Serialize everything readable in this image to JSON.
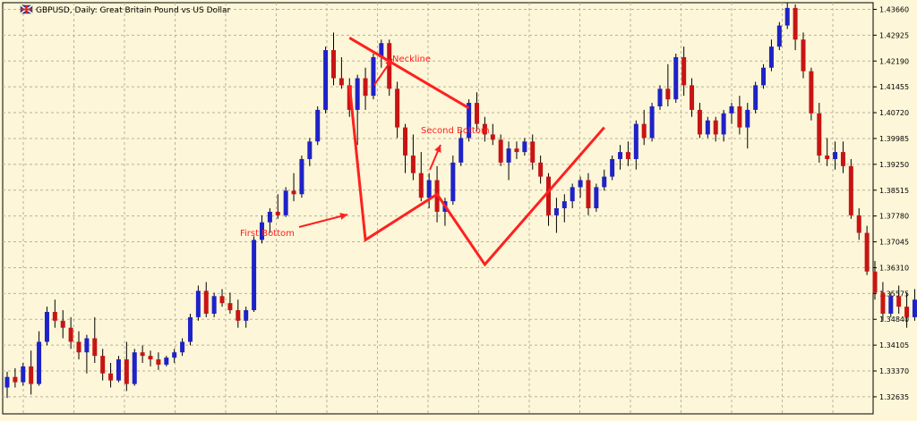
{
  "header": {
    "title": "GBPUSD, Daily:  Great Britain Pound vs US Dollar",
    "flag_icon": "uk-flag-icon"
  },
  "colors": {
    "background": "#fdf6d8",
    "grid": "#b9b39b",
    "axis": "#000000",
    "bull": "#1e22c8",
    "bear": "#c81414",
    "wick": "#000000",
    "annotation": "#ff2020"
  },
  "annotations": {
    "neckline": "Neckline",
    "second_bottom": "Second Bottom",
    "first_bottom": "First Bottom"
  },
  "chart_data": {
    "type": "candlestick",
    "title": "GBPUSD, Daily:  Great Britain Pound vs US Dollar",
    "yticks": [
      1.32635,
      1.3337,
      1.34105,
      1.3484,
      1.35575,
      1.3631,
      1.37045,
      1.3778,
      1.38515,
      1.3925,
      1.39985,
      1.4072,
      1.41455,
      1.4219,
      1.42925,
      1.4366
    ],
    "ytick_labels": [
      "1.32635",
      "1.33370",
      "1.34105",
      "1.34840",
      "1.35575",
      "1.36310",
      "1.37045",
      "1.37780",
      "1.38515",
      "1.39250",
      "1.39985",
      "1.40720",
      "1.41455",
      "1.42190",
      "1.42925",
      "1.43660"
    ],
    "ylim": [
      1.3215,
      1.4385
    ],
    "grid": true,
    "candles": [
      [
        1.329,
        1.3335,
        1.326,
        1.332
      ],
      [
        1.332,
        1.3345,
        1.329,
        1.3305
      ],
      [
        1.3305,
        1.336,
        1.3295,
        1.335
      ],
      [
        1.335,
        1.3395,
        1.327,
        1.33
      ],
      [
        1.33,
        1.345,
        1.3295,
        1.342
      ],
      [
        1.342,
        1.352,
        1.341,
        1.3505
      ],
      [
        1.3505,
        1.354,
        1.346,
        1.348
      ],
      [
        1.348,
        1.351,
        1.343,
        1.346
      ],
      [
        1.346,
        1.349,
        1.34,
        1.342
      ],
      [
        1.342,
        1.345,
        1.337,
        1.339
      ],
      [
        1.339,
        1.344,
        1.333,
        1.343
      ],
      [
        1.343,
        1.349,
        1.336,
        1.338
      ],
      [
        1.338,
        1.34,
        1.331,
        1.333
      ],
      [
        1.333,
        1.336,
        1.329,
        1.331
      ],
      [
        1.331,
        1.338,
        1.3305,
        1.337
      ],
      [
        1.337,
        1.342,
        1.328,
        1.33
      ],
      [
        1.33,
        1.34,
        1.3295,
        1.339
      ],
      [
        1.339,
        1.341,
        1.336,
        1.338
      ],
      [
        1.338,
        1.3395,
        1.335,
        1.337
      ],
      [
        1.337,
        1.339,
        1.334,
        1.3355
      ],
      [
        1.3355,
        1.338,
        1.335,
        1.3375
      ],
      [
        1.3375,
        1.34,
        1.336,
        1.339
      ],
      [
        1.339,
        1.343,
        1.338,
        1.342
      ],
      [
        1.342,
        1.35,
        1.341,
        1.349
      ],
      [
        1.349,
        1.358,
        1.348,
        1.3565
      ],
      [
        1.3565,
        1.359,
        1.349,
        1.35
      ],
      [
        1.35,
        1.356,
        1.349,
        1.355
      ],
      [
        1.355,
        1.357,
        1.352,
        1.353
      ],
      [
        1.353,
        1.356,
        1.35,
        1.351
      ],
      [
        1.351,
        1.354,
        1.346,
        1.348
      ],
      [
        1.348,
        1.352,
        1.346,
        1.351
      ],
      [
        1.351,
        1.372,
        1.3505,
        1.371
      ],
      [
        1.371,
        1.378,
        1.37,
        1.376
      ],
      [
        1.376,
        1.38,
        1.373,
        1.379
      ],
      [
        1.379,
        1.384,
        1.377,
        1.378
      ],
      [
        1.378,
        1.386,
        1.3775,
        1.385
      ],
      [
        1.385,
        1.39,
        1.382,
        1.384
      ],
      [
        1.384,
        1.395,
        1.383,
        1.394
      ],
      [
        1.394,
        1.4,
        1.392,
        1.399
      ],
      [
        1.399,
        1.409,
        1.398,
        1.408
      ],
      [
        1.408,
        1.426,
        1.407,
        1.425
      ],
      [
        1.425,
        1.43,
        1.415,
        1.417
      ],
      [
        1.417,
        1.423,
        1.414,
        1.415
      ],
      [
        1.415,
        1.417,
        1.406,
        1.408
      ],
      [
        1.408,
        1.418,
        1.398,
        1.417
      ],
      [
        1.417,
        1.42,
        1.408,
        1.412
      ],
      [
        1.412,
        1.424,
        1.411,
        1.423
      ],
      [
        1.423,
        1.428,
        1.42,
        1.427
      ],
      [
        1.427,
        1.428,
        1.412,
        1.414
      ],
      [
        1.414,
        1.416,
        1.4,
        1.403
      ],
      [
        1.403,
        1.404,
        1.39,
        1.395
      ],
      [
        1.395,
        1.401,
        1.388,
        1.39
      ],
      [
        1.39,
        1.396,
        1.382,
        1.383
      ],
      [
        1.383,
        1.39,
        1.38,
        1.388
      ],
      [
        1.388,
        1.392,
        1.376,
        1.379
      ],
      [
        1.379,
        1.383,
        1.375,
        1.382
      ],
      [
        1.382,
        1.395,
        1.381,
        1.393
      ],
      [
        1.393,
        1.402,
        1.392,
        1.4
      ],
      [
        1.4,
        1.411,
        1.399,
        1.41
      ],
      [
        1.41,
        1.413,
        1.402,
        1.404
      ],
      [
        1.404,
        1.406,
        1.399,
        1.401
      ],
      [
        1.401,
        1.404,
        1.398,
        1.3995
      ],
      [
        1.3995,
        1.401,
        1.392,
        1.393
      ],
      [
        1.393,
        1.399,
        1.388,
        1.397
      ],
      [
        1.397,
        1.399,
        1.394,
        1.396
      ],
      [
        1.396,
        1.4,
        1.395,
        1.399
      ],
      [
        1.399,
        1.401,
        1.391,
        1.393
      ],
      [
        1.393,
        1.395,
        1.387,
        1.389
      ],
      [
        1.389,
        1.39,
        1.375,
        1.378
      ],
      [
        1.378,
        1.383,
        1.373,
        1.38
      ],
      [
        1.38,
        1.384,
        1.376,
        1.382
      ],
      [
        1.382,
        1.387,
        1.38,
        1.386
      ],
      [
        1.386,
        1.389,
        1.383,
        1.388
      ],
      [
        1.388,
        1.39,
        1.378,
        1.38
      ],
      [
        1.38,
        1.387,
        1.379,
        1.386
      ],
      [
        1.386,
        1.391,
        1.385,
        1.389
      ],
      [
        1.389,
        1.395,
        1.388,
        1.394
      ],
      [
        1.394,
        1.398,
        1.391,
        1.396
      ],
      [
        1.396,
        1.399,
        1.392,
        1.394
      ],
      [
        1.394,
        1.405,
        1.391,
        1.404
      ],
      [
        1.404,
        1.408,
        1.398,
        1.4
      ],
      [
        1.4,
        1.41,
        1.399,
        1.409
      ],
      [
        1.409,
        1.415,
        1.408,
        1.414
      ],
      [
        1.414,
        1.421,
        1.409,
        1.411
      ],
      [
        1.411,
        1.424,
        1.41,
        1.423
      ],
      [
        1.423,
        1.426,
        1.412,
        1.415
      ],
      [
        1.415,
        1.417,
        1.406,
        1.408
      ],
      [
        1.408,
        1.41,
        1.4,
        1.401
      ],
      [
        1.401,
        1.406,
        1.4,
        1.405
      ],
      [
        1.405,
        1.406,
        1.399,
        1.401
      ],
      [
        1.401,
        1.408,
        1.399,
        1.407
      ],
      [
        1.407,
        1.41,
        1.404,
        1.409
      ],
      [
        1.409,
        1.412,
        1.401,
        1.403
      ],
      [
        1.403,
        1.41,
        1.397,
        1.408
      ],
      [
        1.408,
        1.416,
        1.407,
        1.415
      ],
      [
        1.415,
        1.421,
        1.414,
        1.42
      ],
      [
        1.42,
        1.428,
        1.419,
        1.426
      ],
      [
        1.426,
        1.433,
        1.425,
        1.432
      ],
      [
        1.432,
        1.4385,
        1.431,
        1.437
      ],
      [
        1.437,
        1.438,
        1.425,
        1.428
      ],
      [
        1.428,
        1.43,
        1.417,
        1.419
      ],
      [
        1.419,
        1.42,
        1.405,
        1.407
      ],
      [
        1.407,
        1.41,
        1.393,
        1.395
      ],
      [
        1.395,
        1.4,
        1.392,
        1.394
      ],
      [
        1.394,
        1.399,
        1.391,
        1.396
      ],
      [
        1.396,
        1.399,
        1.39,
        1.392
      ],
      [
        1.392,
        1.394,
        1.377,
        1.378
      ],
      [
        1.378,
        1.38,
        1.371,
        1.373
      ],
      [
        1.373,
        1.375,
        1.361,
        1.362
      ],
      [
        1.362,
        1.365,
        1.354,
        1.356
      ],
      [
        1.356,
        1.359,
        1.348,
        1.35
      ],
      [
        1.35,
        1.356,
        1.349,
        1.355
      ],
      [
        1.355,
        1.358,
        1.35,
        1.352
      ],
      [
        1.352,
        1.356,
        1.346,
        1.349
      ],
      [
        1.349,
        1.357,
        1.348,
        1.354
      ],
      [
        1.354,
        1.36,
        1.351,
        1.353
      ],
      [
        1.353,
        1.356,
        1.348,
        1.351
      ],
      [
        1.351,
        1.355,
        1.349,
        1.353
      ],
      [
        1.353,
        1.356,
        1.348,
        1.35
      ],
      [
        1.35,
        1.352,
        1.344,
        1.347
      ],
      [
        1.347,
        1.35,
        1.343,
        1.349
      ],
      [
        1.349,
        1.351,
        1.342,
        1.344
      ],
      [
        1.344,
        1.346,
        1.338,
        1.34
      ],
      [
        1.34,
        1.342,
        1.332,
        1.335
      ],
      [
        1.335,
        1.338,
        1.332,
        1.336
      ],
      [
        1.336,
        1.337,
        1.328,
        1.331
      ],
      [
        1.331,
        1.333,
        1.323,
        1.325
      ],
      [
        1.325,
        1.33,
        1.324,
        1.329
      ],
      [
        1.329,
        1.334,
        1.326,
        1.333
      ],
      [
        1.333,
        1.336,
        1.33,
        1.332
      ],
      [
        1.332,
        1.34,
        1.331,
        1.339
      ],
      [
        1.339,
        1.343,
        1.337,
        1.342
      ]
    ],
    "pattern_lines": [
      {
        "name": "neckline",
        "points": [
          [
            43,
            1.4285
          ],
          [
            58,
            1.4085
          ]
        ]
      },
      {
        "name": "w-shape",
        "points": [
          [
            43,
            1.415
          ],
          [
            45,
            1.371
          ],
          [
            54,
            1.384
          ],
          [
            60,
            1.364
          ],
          [
            75,
            1.403
          ]
        ]
      }
    ]
  }
}
